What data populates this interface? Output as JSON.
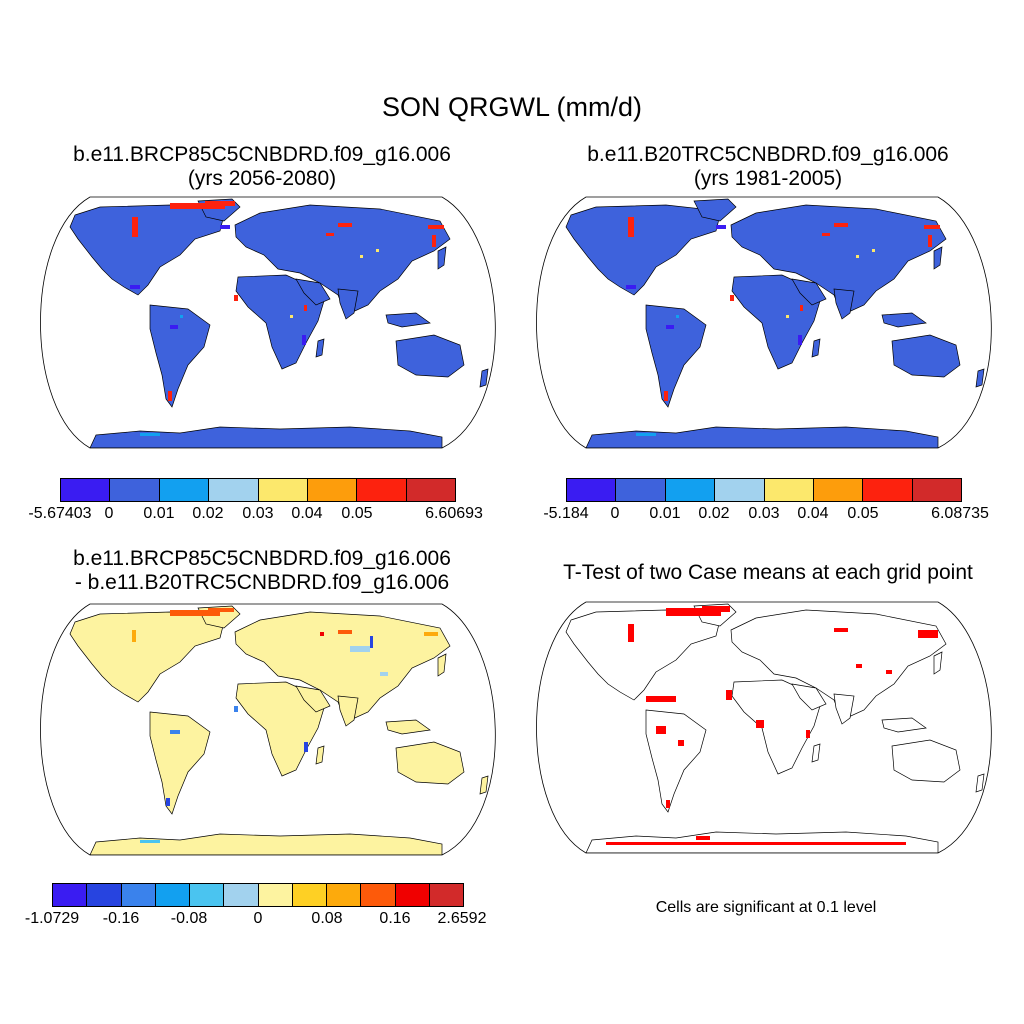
{
  "main_title": "SON QRGWL (mm/d)",
  "panels": [
    {
      "title_line1": "b.e11.BRCP85C5CNBDRD.f09_g16.006",
      "title_line2": "(yrs 2056-2080)",
      "land_color": "#3e62dc",
      "colorbar": {
        "colors": [
          "#3a1cf2",
          "#3e62dc",
          "#12a0f0",
          "#a2d2ee",
          "#fce86c",
          "#fd9d0c",
          "#fd220e",
          "#d22a2a"
        ],
        "labels": [
          "-5.67403",
          "0",
          "0.01",
          "0.02",
          "0.03",
          "0.04",
          "0.05",
          "6.60693"
        ]
      }
    },
    {
      "title_line1": "b.e11.B20TRC5CNBDRD.f09_g16.006",
      "title_line2": "(yrs 1981-2005)",
      "land_color": "#3e62dc",
      "colorbar": {
        "colors": [
          "#3a1cf2",
          "#3e62dc",
          "#12a0f0",
          "#a2d2ee",
          "#fce86c",
          "#fd9d0c",
          "#fd220e",
          "#d22a2a"
        ],
        "labels": [
          "-5.184",
          "0",
          "0.01",
          "0.02",
          "0.03",
          "0.04",
          "0.05",
          "6.08735"
        ]
      }
    },
    {
      "title_line1": "b.e11.BRCP85C5CNBDRD.f09_g16.006",
      "title_line2": "- b.e11.B20TRC5CNBDRD.f09_g16.006",
      "land_color": "#fdf3a0",
      "colorbar": {
        "colors": [
          "#3a1cf2",
          "#2744e0",
          "#3a82ec",
          "#12a0f0",
          "#4ac4f0",
          "#a2d2ee",
          "#fdf3a0",
          "#fed024",
          "#fdaa0c",
          "#fd5a0a",
          "#f00000",
          "#d22a2a"
        ],
        "labels": [
          "-1.0729",
          "-0.16",
          "-0.08",
          "0",
          "0.08",
          "0.16",
          "2.6592"
        ]
      }
    },
    {
      "title_line1": "T-Test of two Case means at each grid point",
      "land_color": "#ffffff",
      "significant_color": "#ff0000",
      "note": "Cells are significant at 0.1 level"
    }
  ]
}
